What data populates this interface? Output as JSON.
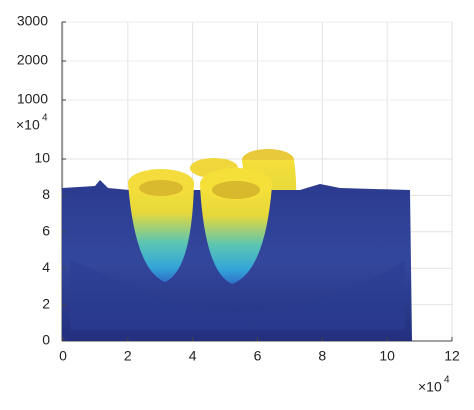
{
  "chart_data": {
    "type": "surface",
    "xlim": [
      0,
      12
    ],
    "xticks": [
      0,
      2,
      4,
      6,
      8,
      10,
      12
    ],
    "ylim": [
      0,
      10
    ],
    "yticks": [
      0,
      2,
      4,
      6,
      8,
      10
    ],
    "zlim": [
      0,
      3000
    ],
    "zticks": [
      1000,
      2000,
      3000
    ],
    "x_multiplier": {
      "base": "×10",
      "exponent": "4"
    },
    "y_multiplier": {
      "base": "×10",
      "exponent": "4"
    },
    "grid": true
  }
}
